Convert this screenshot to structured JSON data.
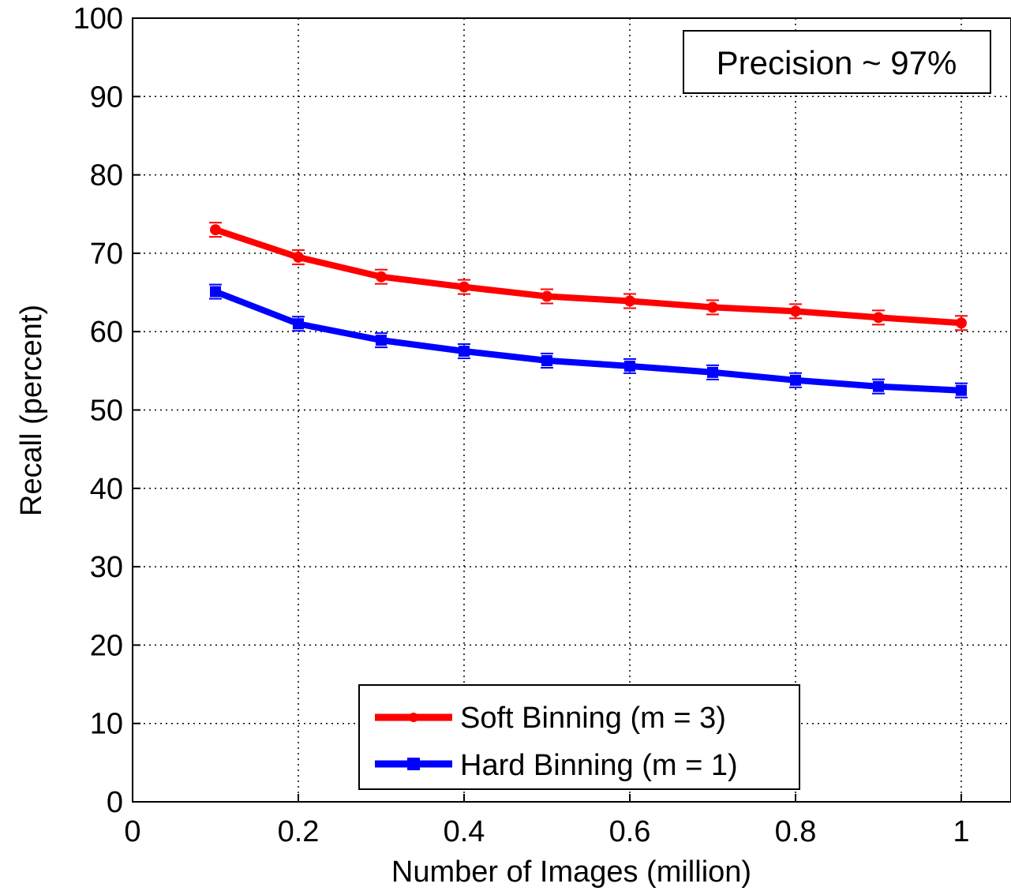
{
  "chart_data": {
    "type": "line",
    "xlabel": "Number of Images (million)",
    "ylabel": "Recall (percent)",
    "xlim": [
      0,
      1.06
    ],
    "ylim": [
      0,
      100
    ],
    "xticks": [
      0,
      0.2,
      0.4,
      0.6,
      0.8,
      1
    ],
    "xtick_labels": [
      "0",
      "0.2",
      "0.4",
      "0.6",
      "0.8",
      "1"
    ],
    "yticks": [
      0,
      10,
      20,
      30,
      40,
      50,
      60,
      70,
      80,
      90,
      100
    ],
    "ytick_labels": [
      "0",
      "10",
      "20",
      "30",
      "40",
      "50",
      "60",
      "70",
      "80",
      "90",
      "100"
    ],
    "grid": true,
    "legend_position": "bottom-center",
    "annotation": "Precision ~ 97%",
    "x": [
      0.1,
      0.2,
      0.3,
      0.4,
      0.5,
      0.6,
      0.7,
      0.8,
      0.9,
      1.0
    ],
    "series": [
      {
        "name": "Soft Binning (m = 3)",
        "color": "#ff0000",
        "values": [
          73.0,
          69.5,
          67.0,
          65.7,
          64.5,
          63.9,
          63.1,
          62.6,
          61.8,
          61.1
        ]
      },
      {
        "name": "Hard Binning (m = 1)",
        "color": "#0000ff",
        "values": [
          65.1,
          61.0,
          58.9,
          57.5,
          56.3,
          55.6,
          54.8,
          53.8,
          53.0,
          52.5
        ]
      }
    ]
  }
}
